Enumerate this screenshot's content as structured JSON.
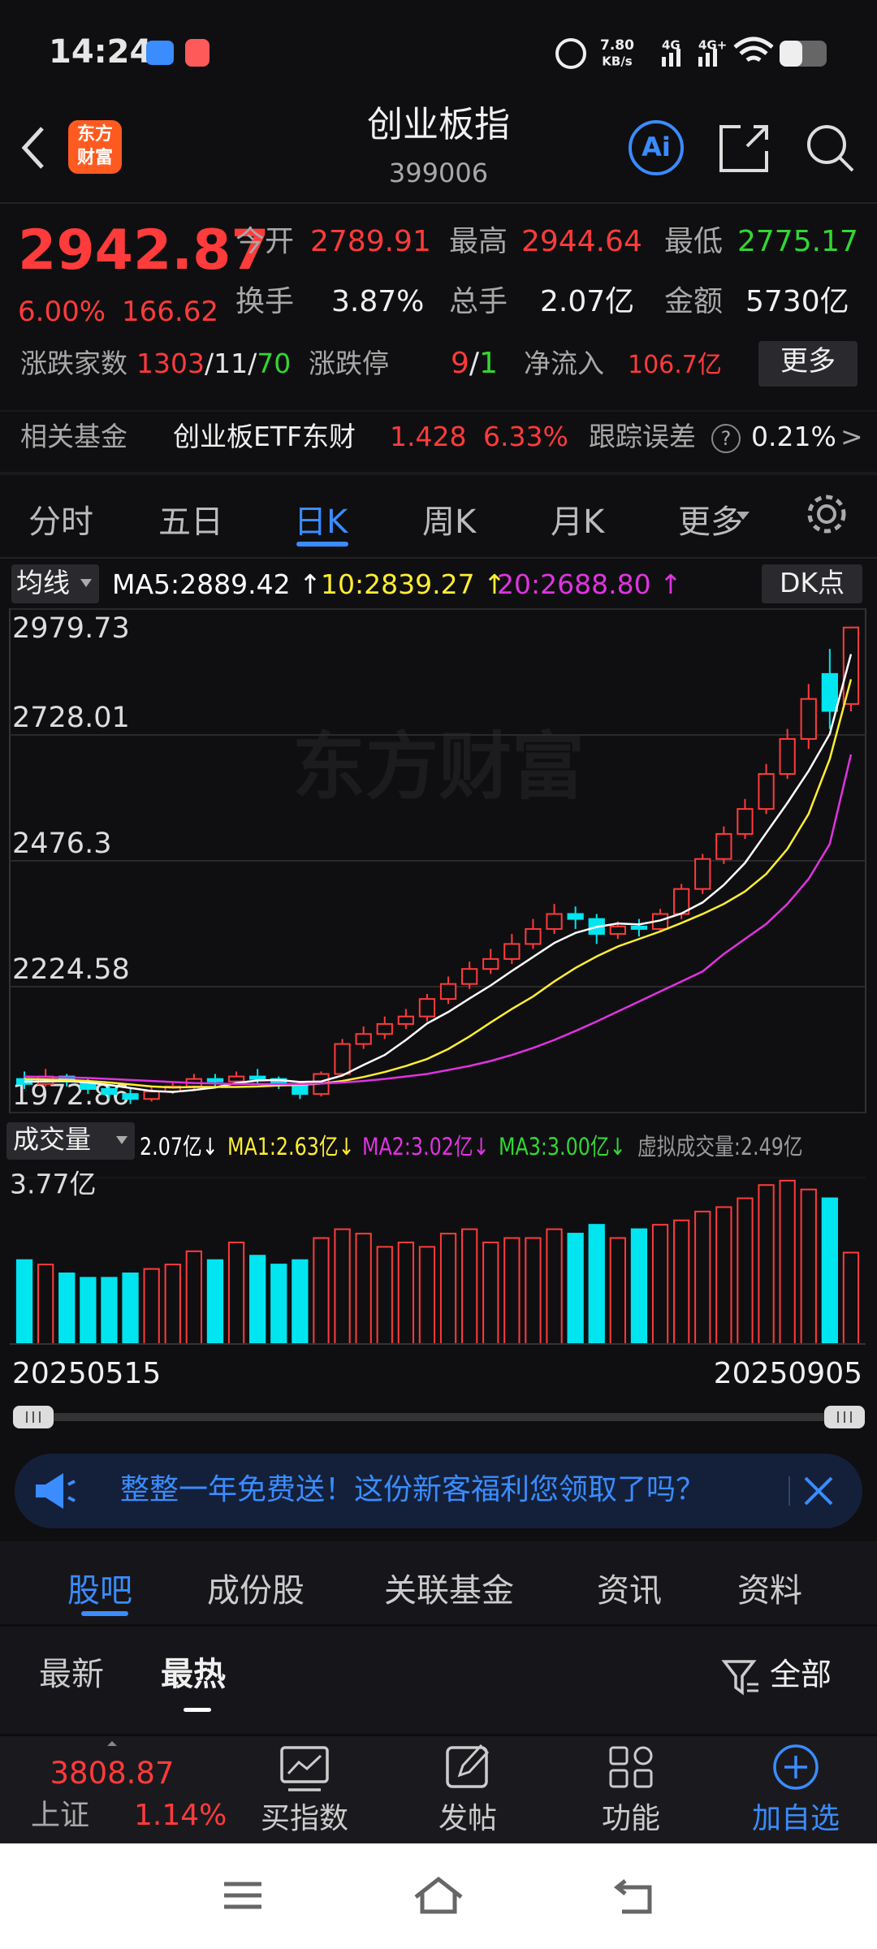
{
  "status": {
    "time": "14:24",
    "speed": "7.80",
    "speed_unit": "KB/s",
    "net1": "4G",
    "net2": "4G+"
  },
  "header": {
    "logo_line1": "东方",
    "logo_line2": "财富",
    "title": "创业板指",
    "code": "399006",
    "ai_label": "Ai"
  },
  "quote": {
    "price": "2942.87",
    "change_pct": "6.00%",
    "change": "166.62",
    "open_label": "今开",
    "open": "2789.91",
    "high_label": "最高",
    "high": "2944.64",
    "low_label": "最低",
    "low": "2775.17",
    "turnover_label": "换手",
    "turnover": "3.87%",
    "hands_label": "总手",
    "hands": "2.07亿",
    "amount_label": "金额",
    "amount": "5730亿",
    "breadth_label": "涨跌家数",
    "breadth": [
      {
        "text": "1303",
        "color": "#ff3b3b"
      },
      {
        "text": "/",
        "color": "#e6e6e6"
      },
      {
        "text": "11",
        "color": "#e6e6e6"
      },
      {
        "text": "/",
        "color": "#e6e6e6"
      },
      {
        "text": "70",
        "color": "#33d633"
      }
    ],
    "limit_label": "涨跌停",
    "limit": [
      {
        "text": "9",
        "color": "#ff3b3b"
      },
      {
        "text": "/",
        "color": "#e6e6e6"
      },
      {
        "text": "1",
        "color": "#33d633"
      }
    ],
    "inflow_label": "净流入",
    "inflow": "106.7亿",
    "more": "更多",
    "fund_label": "相关基金",
    "fund_name": "创业板ETF东财",
    "fund_price": "1.428",
    "fund_pct": "6.33%",
    "track_label": "跟踪误差",
    "track_help": "?",
    "track": "0.21%",
    "track_arrow": ">"
  },
  "tabs": {
    "items": [
      "分时",
      "五日",
      "日K",
      "周K",
      "月K",
      "更多"
    ],
    "active": 2
  },
  "chart_header": {
    "ma_button": "均线",
    "dk_button": "DK点",
    "volume_button": "成交量"
  },
  "chart_data": [
    {
      "type": "candlestick",
      "watermark": "东方财富",
      "up_color": "#ff3b3b",
      "down_color": "#00e5f0",
      "ylim": [
        1972.86,
        2979.73
      ],
      "yticks": [
        1972.86,
        2224.58,
        2476.3,
        2728.01,
        2979.73
      ],
      "candles": [
        [
          2040,
          2030,
          2055,
          2020
        ],
        [
          2030,
          2045,
          2060,
          2025
        ],
        [
          2045,
          2035,
          2050,
          2025
        ],
        [
          2035,
          2020,
          2040,
          2010
        ],
        [
          2020,
          2010,
          2030,
          2000
        ],
        [
          2010,
          2000,
          2020,
          1990
        ],
        [
          2000,
          2015,
          2025,
          1995
        ],
        [
          2015,
          2025,
          2035,
          2010
        ],
        [
          2025,
          2040,
          2050,
          2020
        ],
        [
          2040,
          2035,
          2050,
          2025
        ],
        [
          2035,
          2045,
          2055,
          2030
        ],
        [
          2045,
          2040,
          2060,
          2030
        ],
        [
          2040,
          2030,
          2045,
          2020
        ],
        [
          2030,
          2010,
          2035,
          2000
        ],
        [
          2010,
          2050,
          2055,
          2005
        ],
        [
          2050,
          2110,
          2120,
          2045
        ],
        [
          2110,
          2130,
          2145,
          2100
        ],
        [
          2130,
          2150,
          2165,
          2120
        ],
        [
          2150,
          2165,
          2180,
          2140
        ],
        [
          2165,
          2200,
          2210,
          2155
        ],
        [
          2200,
          2230,
          2245,
          2190
        ],
        [
          2230,
          2260,
          2275,
          2220
        ],
        [
          2260,
          2280,
          2300,
          2250
        ],
        [
          2280,
          2310,
          2330,
          2270
        ],
        [
          2310,
          2340,
          2360,
          2300
        ],
        [
          2340,
          2370,
          2390,
          2330
        ],
        [
          2370,
          2360,
          2385,
          2340
        ],
        [
          2360,
          2330,
          2370,
          2310
        ],
        [
          2330,
          2345,
          2355,
          2320
        ],
        [
          2345,
          2340,
          2360,
          2325
        ],
        [
          2340,
          2370,
          2380,
          2335
        ],
        [
          2370,
          2420,
          2430,
          2360
        ],
        [
          2420,
          2480,
          2490,
          2410
        ],
        [
          2480,
          2530,
          2545,
          2470
        ],
        [
          2530,
          2580,
          2600,
          2520
        ],
        [
          2580,
          2650,
          2670,
          2570
        ],
        [
          2650,
          2720,
          2740,
          2640
        ],
        [
          2720,
          2800,
          2830,
          2700
        ],
        [
          2850,
          2776,
          2900,
          2740
        ],
        [
          2789.91,
          2942.87,
          2944.64,
          2775.17
        ]
      ],
      "series": [
        {
          "name": "MA5:2889.42 ↑",
          "color": "#ffffff",
          "values": [
            2035,
            2035,
            2036,
            2033,
            2028,
            2022,
            2016,
            2014,
            2018,
            2023,
            2032,
            2037,
            2038,
            2034,
            2035,
            2047,
            2068,
            2088,
            2118,
            2151,
            2174,
            2201,
            2227,
            2256,
            2284,
            2312,
            2332,
            2344,
            2351,
            2349,
            2357,
            2371,
            2393,
            2428,
            2472,
            2532,
            2592,
            2656,
            2730,
            2889.42
          ]
        },
        {
          "name": "10:2839.27 ↑",
          "color": "#ffee33",
          "values": [
            2040,
            2039,
            2038,
            2036,
            2033,
            2029,
            2025,
            2023,
            2024,
            2024,
            2024,
            2025,
            2027,
            2028,
            2031,
            2036,
            2044,
            2054,
            2066,
            2080,
            2100,
            2125,
            2153,
            2180,
            2205,
            2235,
            2262,
            2285,
            2305,
            2320,
            2335,
            2352,
            2370,
            2390,
            2415,
            2450,
            2500,
            2570,
            2680,
            2839.27
          ]
        },
        {
          "name": "20:2688.80 ↑",
          "color": "#e033e0",
          "values": [
            2045,
            2044,
            2043,
            2042,
            2040,
            2038,
            2036,
            2034,
            2032,
            2031,
            2030,
            2030,
            2030,
            2030,
            2031,
            2033,
            2036,
            2040,
            2045,
            2050,
            2058,
            2066,
            2076,
            2088,
            2102,
            2118,
            2136,
            2155,
            2175,
            2195,
            2215,
            2235,
            2255,
            2290,
            2320,
            2350,
            2390,
            2440,
            2510,
            2688.8
          ]
        }
      ]
    },
    {
      "type": "bar",
      "ylim": [
        0,
        3.77
      ],
      "yticks": [
        {
          "value": 3.77,
          "label": "3.77亿"
        }
      ],
      "values": [
        1.9,
        1.8,
        1.6,
        1.5,
        1.5,
        1.6,
        1.7,
        1.8,
        2.1,
        1.9,
        2.3,
        2.0,
        1.8,
        1.9,
        2.4,
        2.6,
        2.5,
        2.2,
        2.3,
        2.2,
        2.5,
        2.6,
        2.3,
        2.4,
        2.4,
        2.6,
        2.5,
        2.7,
        2.4,
        2.6,
        2.7,
        2.8,
        3.0,
        3.1,
        3.3,
        3.6,
        3.7,
        3.5,
        3.3,
        2.07
      ],
      "indicators": [
        {
          "text": "2.07亿↓",
          "color": "#ffffff"
        },
        {
          "text": "MA1:2.63亿↓",
          "color": "#ffee33"
        },
        {
          "text": "MA2:3.02亿↓",
          "color": "#e033e0"
        },
        {
          "text": "MA3:3.00亿↓",
          "color": "#33d633"
        },
        {
          "text": "虚拟成交量:2.49亿",
          "color": "#9a9a9a"
        }
      ],
      "date_range": [
        "20250515",
        "20250905"
      ]
    }
  ],
  "banner": {
    "text": "整整一年免费送！这份新客福利您领取了吗？"
  },
  "section_tabs": {
    "items": [
      "股吧",
      "成份股",
      "关联基金",
      "资讯",
      "资料"
    ]
  },
  "sort": {
    "latest": "最新",
    "hot": "最热",
    "filter": "全部"
  },
  "bottom_bar": {
    "index_value": "3808.87",
    "index_name": "上证",
    "index_pct": "1.14%",
    "buy": "买指数",
    "post": "发帖",
    "func": "功能",
    "add": "加自选"
  }
}
